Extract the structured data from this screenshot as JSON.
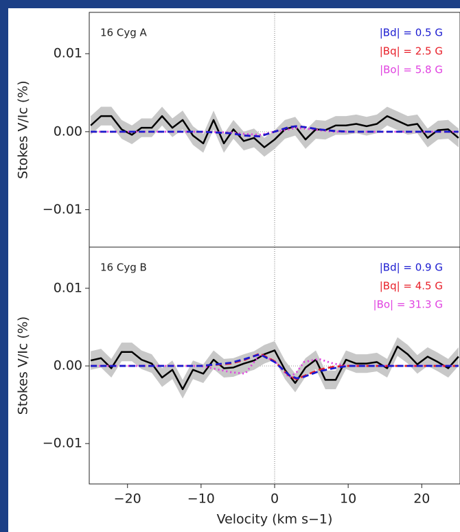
{
  "chart_data": [
    {
      "type": "line",
      "annotation": "16 Cyg A",
      "ylabel": "Stokes V/Ic (%)",
      "xlim": [
        -25.2,
        25.2
      ],
      "ylim": [
        -0.0148,
        0.0153
      ],
      "yticks": [
        {
          "value": 0.01,
          "label": "0.01"
        },
        {
          "value": 0,
          "label": "0.00"
        },
        {
          "value": -0.01,
          "label": "−0.01"
        }
      ],
      "vline": 0,
      "hline": 0,
      "band_color": "#c8c8c8",
      "series": [
        {
          "name": "observed",
          "color": "#000000",
          "style": "solid",
          "error": 0.0012,
          "x": [
            -25.0,
            -23.6,
            -22.2,
            -20.8,
            -19.4,
            -18.1,
            -16.7,
            -15.3,
            -13.9,
            -12.5,
            -11.1,
            -9.7,
            -8.3,
            -6.9,
            -5.6,
            -4.2,
            -2.8,
            -1.4,
            0,
            1.4,
            2.8,
            4.2,
            5.6,
            6.9,
            8.3,
            9.7,
            11.1,
            12.5,
            13.9,
            15.3,
            16.7,
            18.1,
            19.4,
            20.8,
            22.2,
            23.6,
            25.0
          ],
          "values": [
            0.0008,
            0.002,
            0.002,
            0.0003,
            -0.0004,
            0.0005,
            0.0005,
            0.002,
            0.0005,
            0.0015,
            -0.0005,
            -0.0015,
            0.0015,
            -0.0015,
            0.0003,
            -0.0012,
            -0.0008,
            -0.002,
            -0.001,
            0.0003,
            0.0007,
            -0.001,
            0.0003,
            0.0002,
            0.0008,
            0.0008,
            0.001,
            0.0007,
            0.001,
            0.002,
            0.0014,
            0.0008,
            0.001,
            -0.0008,
            0.0002,
            0.0003,
            -0.0008
          ]
        },
        {
          "name": "|Bo| = 5.8 G",
          "color": "#e040e0",
          "style": "dotted",
          "x": [
            -25,
            -10,
            -6,
            -4,
            -2,
            0,
            2,
            3,
            4,
            6,
            8,
            10,
            25
          ],
          "values": [
            0,
            0,
            -0.0001,
            -0.0003,
            -0.0004,
            0,
            0.0003,
            0.0005,
            0.0004,
            0.0002,
            0,
            0,
            0
          ]
        },
        {
          "name": "|Bq| = 2.5 G",
          "color": "#e8202a",
          "style": "dashed",
          "x": [
            -25,
            -10,
            -6,
            -4,
            -2,
            0,
            2,
            3,
            4,
            6,
            8,
            10,
            25
          ],
          "values": [
            0,
            0,
            -0.0002,
            -0.0005,
            -0.0006,
            0,
            0.0006,
            0.0007,
            0.0006,
            0.0003,
            0.0001,
            0,
            0
          ]
        },
        {
          "name": "|Bd| = 0.5 G",
          "color": "#1a1ad0",
          "style": "dashed",
          "x": [
            -25,
            -10,
            -6,
            -4,
            -2,
            0,
            2,
            3,
            4,
            6,
            8,
            10,
            25
          ],
          "values": [
            0,
            0,
            -0.0002,
            -0.0005,
            -0.0006,
            0,
            0.0006,
            0.0007,
            0.0006,
            0.0003,
            0.0001,
            0,
            0
          ]
        }
      ]
    },
    {
      "type": "line",
      "annotation": "16 Cyg B",
      "ylabel": "Stokes V/Ic (%)",
      "xlabel": "Velocity (km s−1)",
      "xlim": [
        -25.2,
        25.2
      ],
      "ylim": [
        -0.0152,
        0.0153
      ],
      "xticks": [
        {
          "value": -20,
          "label": "−20"
        },
        {
          "value": -10,
          "label": "−10"
        },
        0,
        10,
        20
      ],
      "yticks": [
        {
          "value": 0.01,
          "label": "0.01"
        },
        {
          "value": 0,
          "label": "0.00"
        },
        {
          "value": -0.01,
          "label": "−0.01"
        }
      ],
      "vline": 0,
      "hline": 0,
      "band_color": "#c8c8c8",
      "series": [
        {
          "name": "observed",
          "color": "#000000",
          "style": "solid",
          "error": 0.0012,
          "x": [
            -25.0,
            -23.6,
            -22.2,
            -20.8,
            -19.4,
            -18.1,
            -16.7,
            -15.3,
            -13.9,
            -12.5,
            -11.1,
            -9.7,
            -8.3,
            -6.9,
            -5.6,
            -4.2,
            -2.8,
            -1.4,
            0,
            1.4,
            2.8,
            4.2,
            5.6,
            6.9,
            8.3,
            9.7,
            11.1,
            12.5,
            13.9,
            15.3,
            16.7,
            18.1,
            19.4,
            20.8,
            22.2,
            23.6,
            25.0
          ],
          "values": [
            0.0007,
            0.001,
            -0.0003,
            0.0018,
            0.0018,
            0.0008,
            0.0003,
            -0.0015,
            -0.0005,
            -0.003,
            -0.0005,
            -0.001,
            0.0008,
            -0.0003,
            -0.0002,
            0.0003,
            0.0007,
            0.0015,
            0.002,
            -0.0005,
            -0.0022,
            -0.0002,
            0.0008,
            -0.0018,
            -0.0018,
            0.0008,
            0.0003,
            0.0003,
            0.0005,
            -0.0003,
            0.0025,
            0.0015,
            0.0002,
            0.0012,
            0.0005,
            -0.0003,
            0.0012
          ]
        },
        {
          "name": "|Bo| = 31.3 G",
          "color": "#e040e0",
          "style": "dotted",
          "x": [
            -25,
            -10,
            -6,
            -4,
            -2,
            0,
            2,
            3,
            4,
            6,
            8,
            10,
            25
          ],
          "values": [
            0,
            0,
            -0.0008,
            -0.001,
            0.0015,
            0.0006,
            -0.0015,
            -0.0008,
            0.0005,
            0.0009,
            0.0003,
            0,
            0
          ]
        },
        {
          "name": "|Bq| = 4.5 G",
          "color": "#e8202a",
          "style": "dashed",
          "x": [
            -25,
            -10,
            -6,
            -4,
            -2,
            0,
            2,
            3,
            4,
            6,
            8,
            10,
            25
          ],
          "values": [
            0,
            0,
            0.0003,
            0.0008,
            0.0016,
            0.0006,
            -0.0013,
            -0.0017,
            -0.0013,
            -0.0005,
            -0.0001,
            0,
            0
          ]
        },
        {
          "name": "|Bd| = 0.9 G",
          "color": "#1a1ad0",
          "style": "dashed",
          "x": [
            -25,
            -10,
            -6,
            -4,
            -2,
            0,
            2,
            3,
            4,
            6,
            8,
            10,
            25
          ],
          "values": [
            0,
            0,
            0.0004,
            0.0009,
            0.0015,
            0.0005,
            -0.0012,
            -0.0016,
            -0.0014,
            -0.0007,
            -0.0003,
            0,
            0
          ]
        }
      ]
    }
  ]
}
